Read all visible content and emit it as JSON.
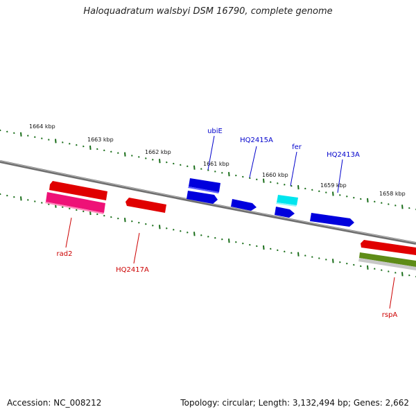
{
  "title": "Haloquadratum walsbyi DSM 16790, complete genome",
  "footer": {
    "accession": "Accession: NC_008212",
    "summary": "Topology: circular; Length: 3,132,494 bp; Genes: 2,662"
  },
  "colors": {
    "backbone": "#7a7a7a",
    "ticks": "#1a6e1a",
    "forward_gene": "#0000dd",
    "reverse_gene": "#e00000",
    "forward_label": "#0000cc",
    "reverse_label": "#cc0000"
  },
  "ticks": [
    {
      "label": "1664 kbp"
    },
    {
      "label": "1663 kbp"
    },
    {
      "label": "1662 kbp"
    },
    {
      "label": "1661 kbp"
    },
    {
      "label": "1660 kbp"
    },
    {
      "label": "1659 kbp"
    },
    {
      "label": "1658 kbp"
    }
  ],
  "gene_labels": {
    "forward": [
      "ubiE",
      "HQ2415A",
      "fer",
      "HQ2413A"
    ],
    "reverse": [
      "rad2",
      "HQ2417A",
      "rspA"
    ]
  }
}
